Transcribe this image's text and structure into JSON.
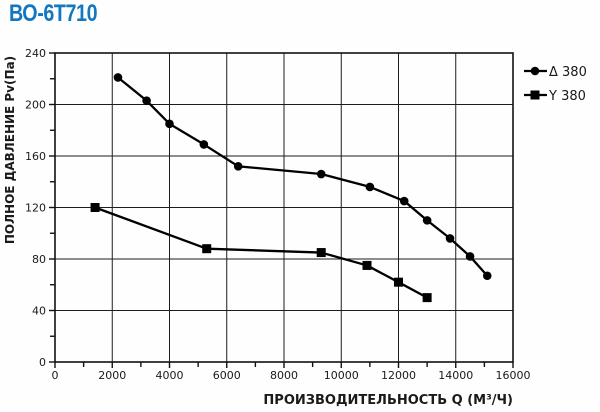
{
  "page": {
    "title": "ВО-6Т710"
  },
  "chart_data": {
    "type": "line",
    "title": "ВО-6Т710",
    "xlabel": "ПРОИЗВОДИТЕЛЬНОСТЬ Q (М³/Ч)",
    "ylabel": "ПОЛНОЕ ДАВЛЕНИЕ Pv(Па)",
    "xlim": [
      0,
      16000
    ],
    "ylim": [
      0,
      240
    ],
    "x_ticks": [
      0,
      2000,
      4000,
      6000,
      8000,
      10000,
      12000,
      14000,
      16000
    ],
    "y_ticks": [
      0,
      40,
      80,
      120,
      160,
      200,
      240
    ],
    "x_minor_step": 1000,
    "y_minor_step": 20,
    "grid": "major-both",
    "legend_position": "outside-right-top",
    "line_color": "#000000",
    "series": [
      {
        "name": "Δ 380",
        "marker": "circle",
        "color": "#000000",
        "points": [
          [
            2200,
            221
          ],
          [
            3200,
            203
          ],
          [
            4000,
            185
          ],
          [
            5200,
            169
          ],
          [
            6400,
            152
          ],
          [
            9300,
            146
          ],
          [
            11000,
            136
          ],
          [
            12200,
            125
          ],
          [
            13000,
            110
          ],
          [
            13800,
            96
          ],
          [
            14500,
            82
          ],
          [
            15100,
            67
          ]
        ]
      },
      {
        "name": "Y 380",
        "marker": "square",
        "color": "#000000",
        "points": [
          [
            1400,
            120
          ],
          [
            5300,
            88
          ],
          [
            9300,
            85
          ],
          [
            10900,
            75
          ],
          [
            12000,
            62
          ],
          [
            13000,
            50
          ]
        ]
      }
    ]
  }
}
